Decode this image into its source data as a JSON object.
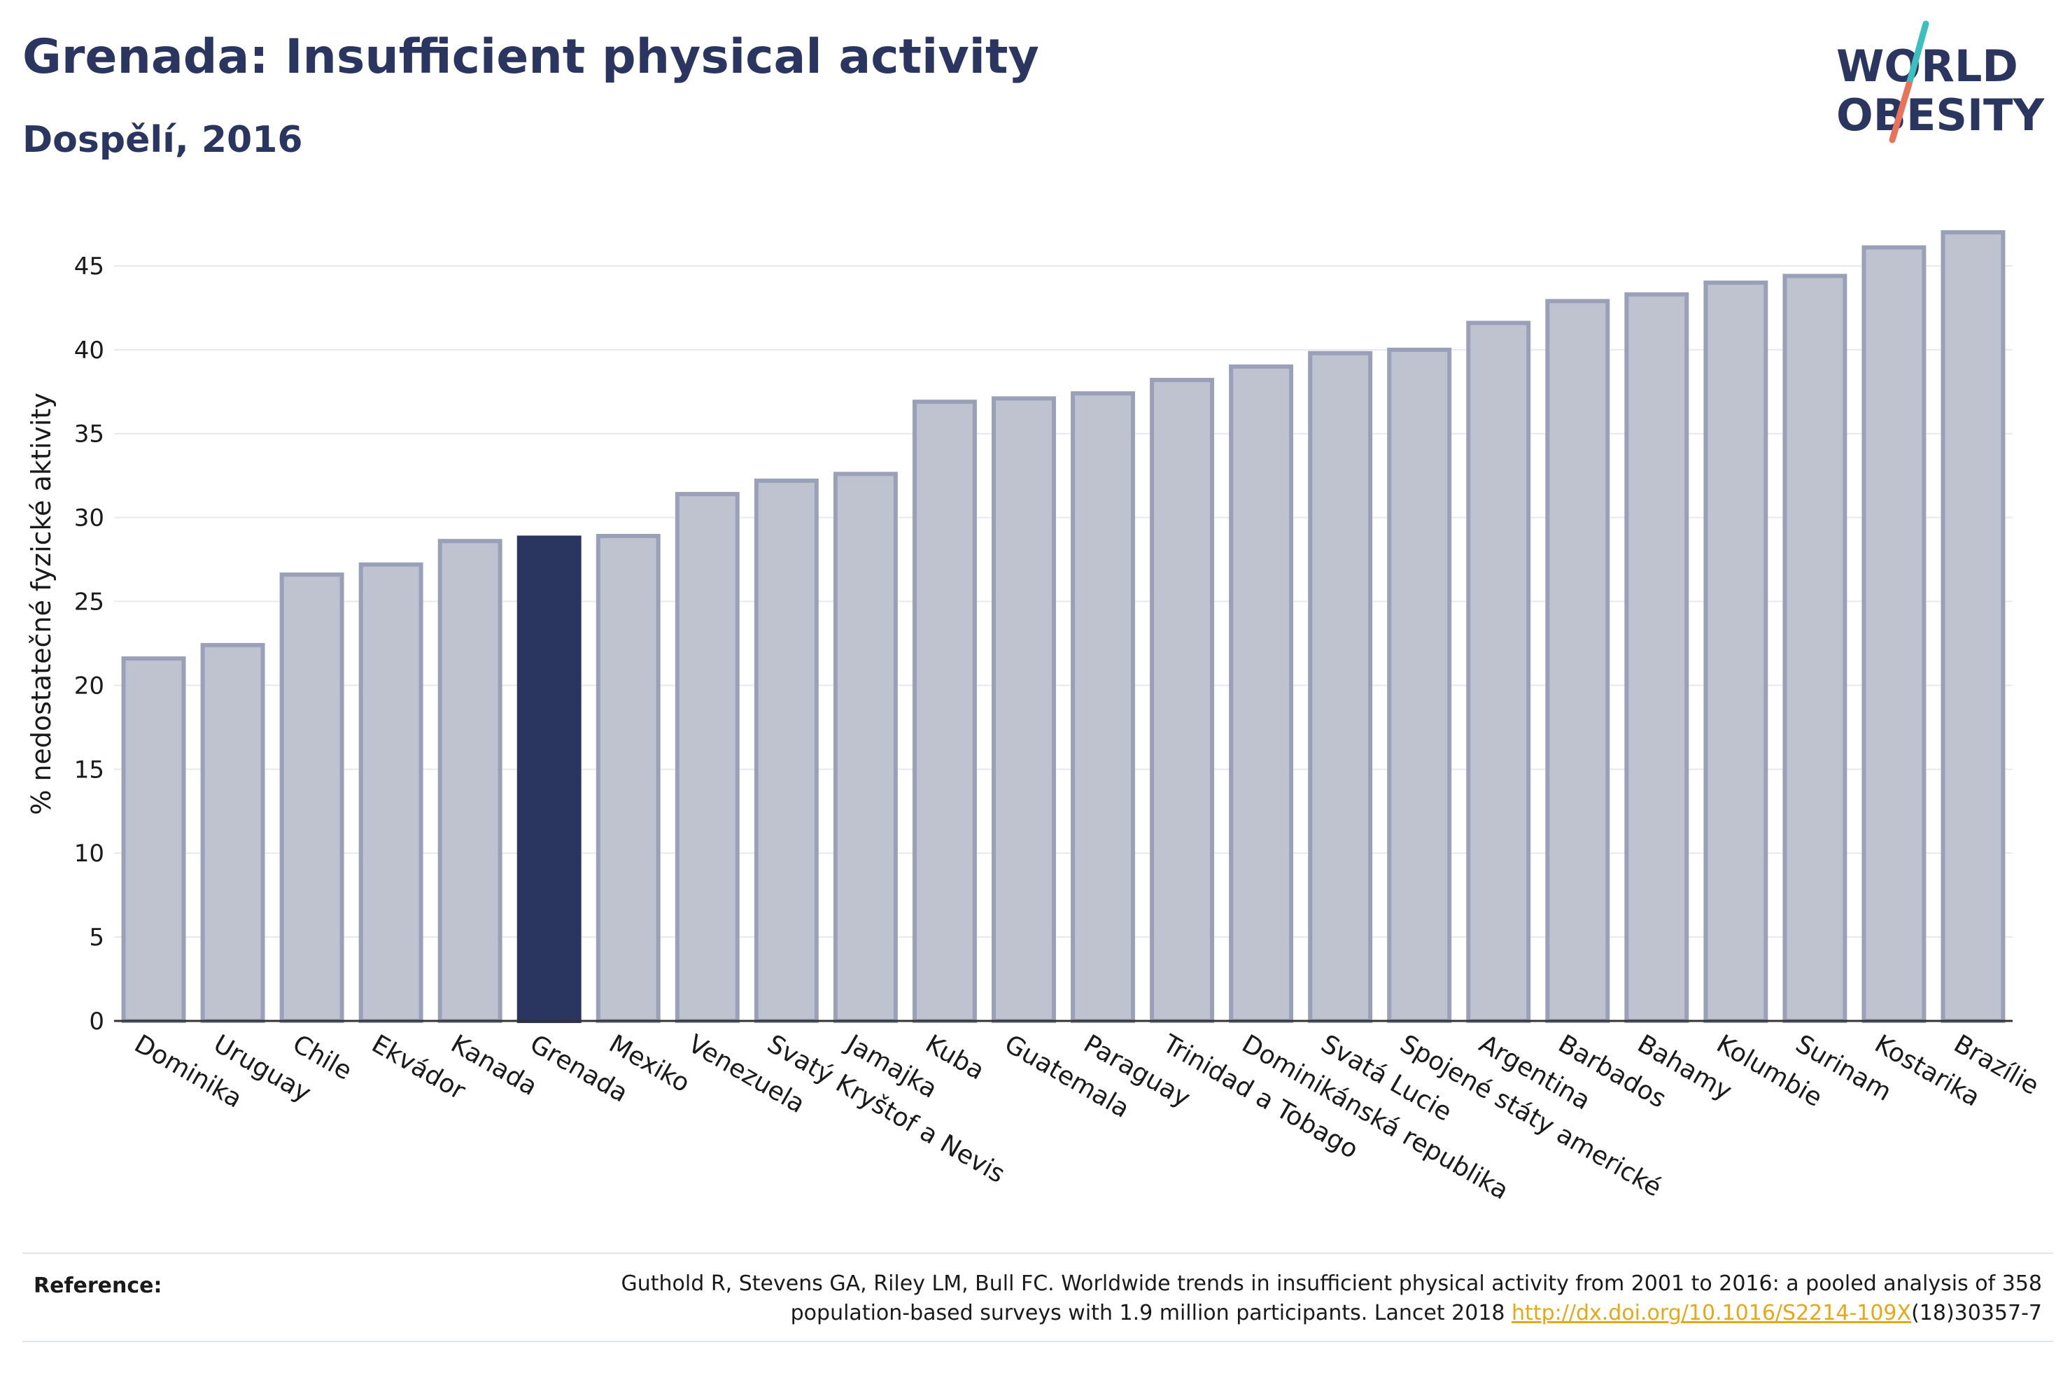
{
  "header": {
    "title": "Grenada: Insufficient physical activity",
    "subtitle": "Dospělí, 2016"
  },
  "logo": {
    "line1": "WORLD",
    "line2": "OBESITY",
    "colors": {
      "text": "#2a3560",
      "slash_top": "#3bbfbf",
      "slash_bottom": "#e8735a"
    }
  },
  "chart_data": {
    "type": "bar",
    "ylabel": "% nedostatečné fyzické aktivity",
    "xlabel": "",
    "ylim": [
      0,
      47.5
    ],
    "yticks": [
      0,
      5,
      10,
      15,
      20,
      25,
      30,
      35,
      40,
      45
    ],
    "grid": true,
    "highlight": "Grenada",
    "colors": {
      "bar": "#bfc2cf",
      "bar_stroke": "#9aa0b8",
      "highlight": "#2a3560",
      "grid": "#e8e9ee",
      "axis": "#333333"
    },
    "categories": [
      "Dominika",
      "Uruguay",
      "Chile",
      "Ekvádor",
      "Kanada",
      "Grenada",
      "Mexiko",
      "Venezuela",
      "Svatý Kryštof a Nevis",
      "Jamajka",
      "Kuba",
      "Guatemala",
      "Paraguay",
      "Trinidad a Tobago",
      "Dominikánská republika",
      "Svatá Lucie",
      "Spojené státy americké",
      "Argentina",
      "Barbados",
      "Bahamy",
      "Kolumbie",
      "Surinam",
      "Kostarika",
      "Brazílie"
    ],
    "values": [
      21.6,
      22.4,
      26.6,
      27.2,
      28.6,
      28.8,
      28.9,
      31.4,
      32.2,
      32.6,
      36.9,
      37.1,
      37.4,
      38.2,
      39.0,
      39.8,
      40.0,
      41.6,
      42.9,
      43.3,
      44.0,
      44.4,
      46.1,
      47.0
    ]
  },
  "footer": {
    "label": "Reference:",
    "text_line1": "Guthold R, Stevens GA, Riley LM, Bull FC. Worldwide trends in insufficient physical activity from 2001 to 2016: a pooled analysis of 358",
    "text_line2_prefix": "population-based surveys with 1.9 million participants. Lancet 2018 ",
    "link": "http://dx.doi.org/10.1016/S2214-109X",
    "text_line2_suffix": "(18)30357-7"
  }
}
